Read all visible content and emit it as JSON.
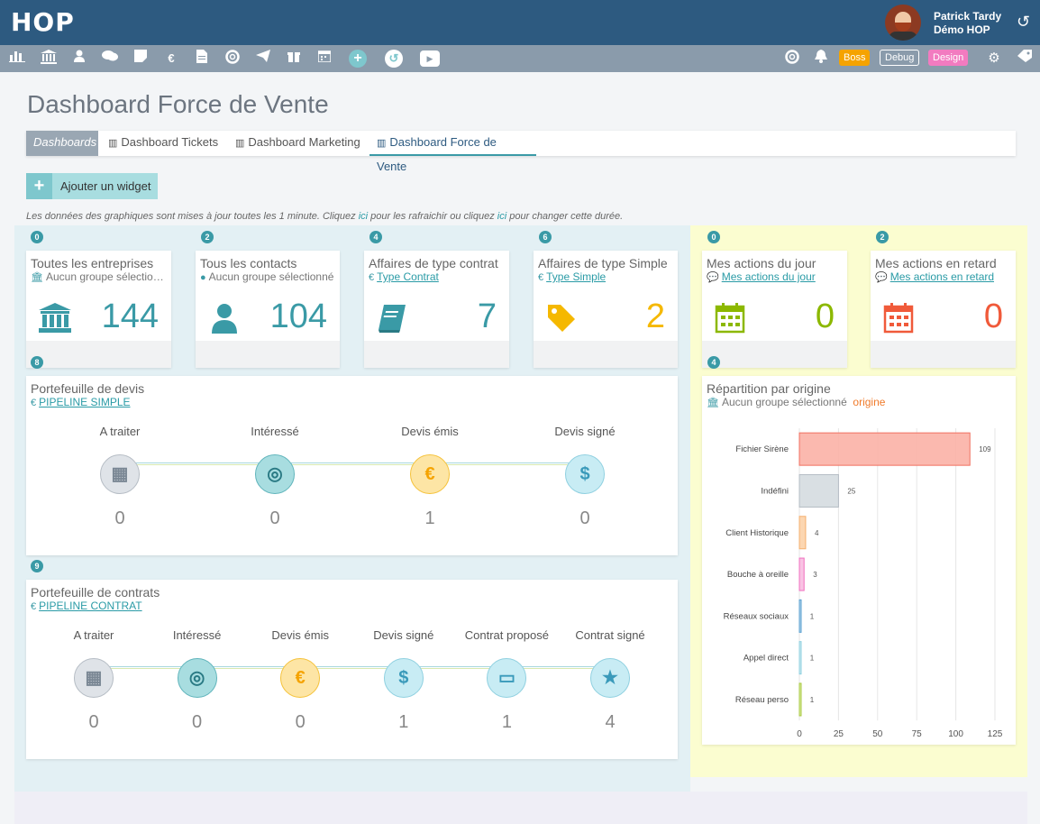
{
  "header": {
    "logo": "HOP",
    "user_name": "Patrick Tardy",
    "user_company": "Démo HOP",
    "refresh_icon": "refresh-icon"
  },
  "toolbar": {
    "icons": [
      "bar-chart-icon",
      "bank-icon",
      "user-icon",
      "comments-icon",
      "note-icon",
      "euro-icon",
      "file-icon",
      "lifebuoy-icon",
      "send-icon",
      "gift-icon",
      "calendar-icon",
      "plus-circle-icon",
      "history-icon",
      "youtube-icon"
    ],
    "right_icons": [
      "lifebuoy-icon",
      "bell-icon",
      "gear-icon",
      "tag-icon"
    ],
    "boss_label": "Boss",
    "debug_label": "Debug",
    "design_label": "Design",
    "colors": {
      "boss": "#f5a300",
      "design": "#f27bc0"
    }
  },
  "page": {
    "title": "Dashboard Force de Vente"
  },
  "tabs": {
    "label": "Dashboards",
    "items": [
      "Dashboard Tickets",
      "Dashboard Marketing",
      "Dashboard Force de Vente"
    ],
    "active": "Dashboard Force de Vente"
  },
  "add_widget": {
    "label": "Ajouter un widget"
  },
  "note": {
    "p1": "Les données des graphiques sont mises à jour toutes les 1 minute. Cliquez ",
    "link1": "ici",
    "p2": " pour les rafraichir ou cliquez ",
    "link2": "ici",
    "p3": " pour changer cette durée."
  },
  "widgets": [
    {
      "badge": "0",
      "title": "Toutes les entreprises",
      "sub": "Aucun groupe sélectionné",
      "value": "144",
      "color": "#3a9aa6",
      "icon": "bank-icon"
    },
    {
      "badge": "2",
      "title": "Tous les contacts",
      "sub": "Aucun groupe sélectionné",
      "value": "104",
      "color": "#3a9aa6",
      "icon": "user-icon"
    },
    {
      "badge": "4",
      "title": "Affaires de type contrat",
      "sub": "Type Contrat",
      "value": "7",
      "color": "#3a9aa6",
      "icon": "book-icon"
    },
    {
      "badge": "6",
      "title": "Affaires de type Simple",
      "sub": "Type Simple",
      "value": "2",
      "color": "#f5b800",
      "icon": "tag-icon"
    },
    {
      "badge": "0",
      "title": "Mes actions du jour",
      "sub": "Mes actions du jour",
      "value": "0",
      "color": "#8cb800",
      "icon": "calendar-icon"
    },
    {
      "badge": "2",
      "title": "Mes actions en retard",
      "sub": "Mes actions en retard",
      "value": "0",
      "color": "#f05a3a",
      "icon": "calendar-icon"
    }
  ],
  "pipeline_devis": {
    "badge": "8",
    "title": "Portefeuille de devis",
    "link": "PIPELINE SIMPLE",
    "stages": [
      {
        "label": "A traiter",
        "value": "0",
        "icon": "calendar-icon",
        "glyph": "▦"
      },
      {
        "label": "Intéressé",
        "value": "0",
        "icon": "target-icon",
        "glyph": "◎"
      },
      {
        "label": "Devis émis",
        "value": "1",
        "icon": "euro-icon",
        "glyph": "€"
      },
      {
        "label": "Devis signé",
        "value": "0",
        "icon": "dollar-icon",
        "glyph": "$"
      }
    ]
  },
  "pipeline_contrats": {
    "badge": "9",
    "title": "Portefeuille de contrats",
    "link": "PIPELINE CONTRAT",
    "stages": [
      {
        "label": "A traiter",
        "value": "0",
        "icon": "calendar-icon",
        "glyph": "▦"
      },
      {
        "label": "Intéressé",
        "value": "0",
        "icon": "target-icon",
        "glyph": "◎"
      },
      {
        "label": "Devis émis",
        "value": "0",
        "icon": "euro-icon",
        "glyph": "€"
      },
      {
        "label": "Devis signé",
        "value": "1",
        "icon": "dollar-icon",
        "glyph": "$"
      },
      {
        "label": "Contrat proposé",
        "value": "1",
        "icon": "credit-card-icon",
        "glyph": "▭"
      },
      {
        "label": "Contrat signé",
        "value": "4",
        "icon": "star-icon",
        "glyph": "★"
      }
    ]
  },
  "repartition": {
    "badge": "4",
    "title": "Répartition par origine",
    "sub": "Aucun groupe sélectionné",
    "sub_tag": "origine"
  },
  "chart_data": {
    "type": "bar",
    "orientation": "horizontal",
    "categories": [
      "Fichier Sirène",
      "Indéfini",
      "Client Historique",
      "Bouche à oreille",
      "Réseaux sociaux",
      "Appel direct",
      "Réseau perso"
    ],
    "values": [
      109,
      25,
      4,
      3,
      1,
      1,
      1
    ],
    "colors": [
      "#fbb1a6",
      "#d5dbe0",
      "#fcd2a8",
      "#f8bce0",
      "#a8cfe8",
      "#c8e8f0",
      "#d8ec9a"
    ],
    "xlim": [
      0,
      125
    ],
    "xticks": [
      "0",
      "25",
      "50",
      "75",
      "100",
      "125"
    ],
    "grid": true
  }
}
